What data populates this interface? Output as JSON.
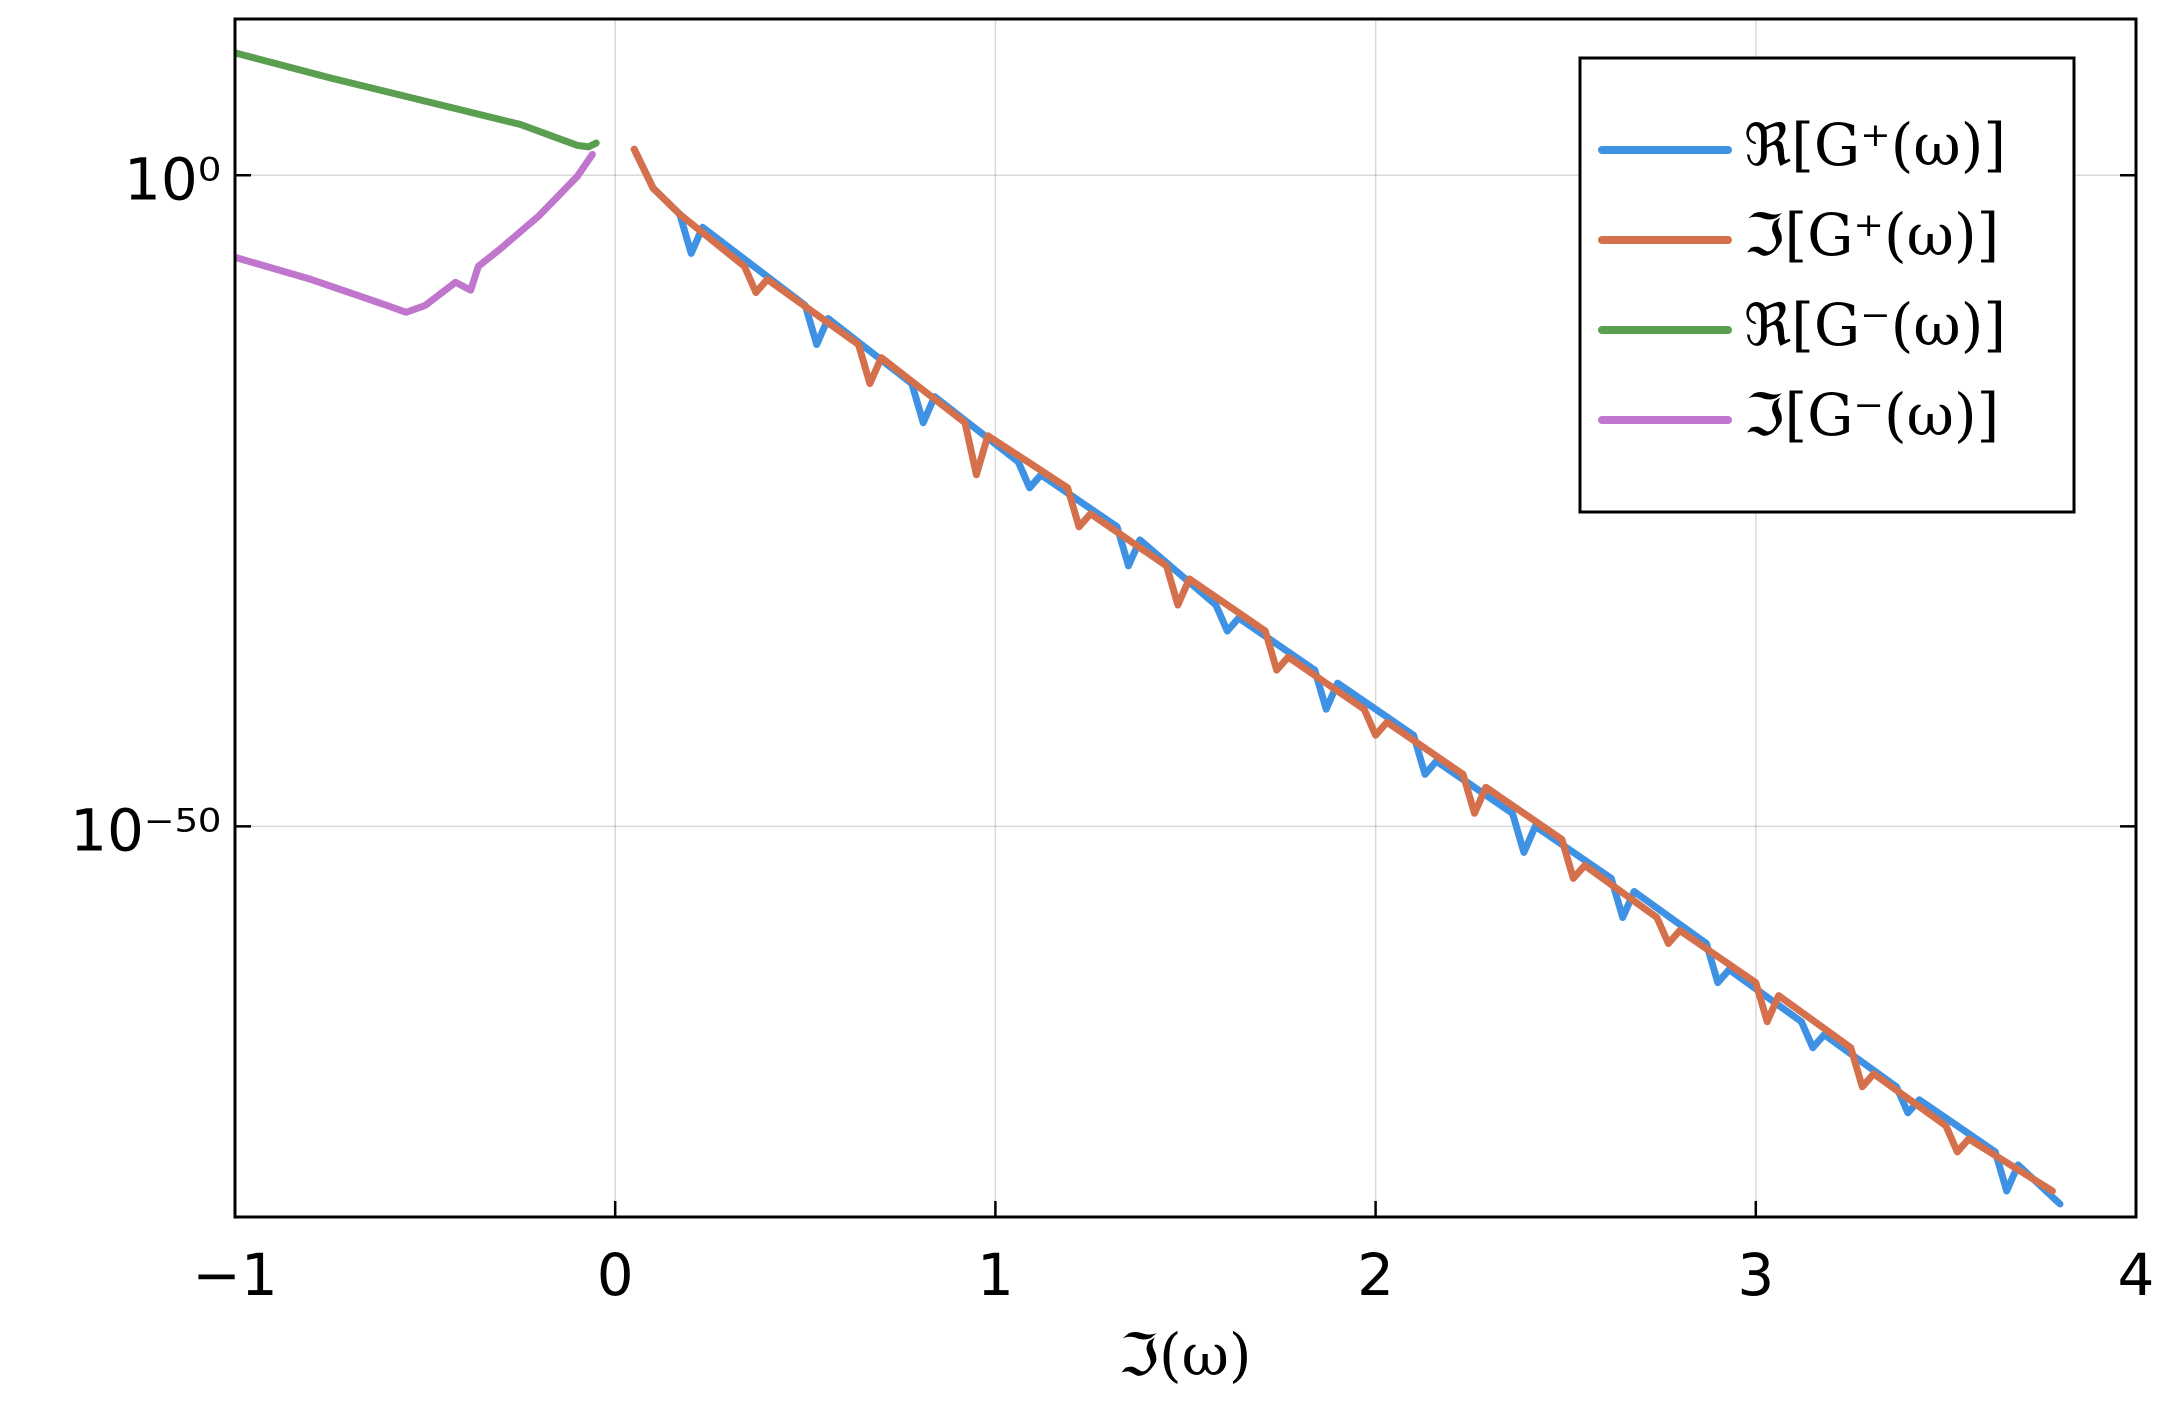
{
  "chart_data": {
    "type": "line",
    "x_label": "ℑ(ω)",
    "xlim": [
      -1,
      4
    ],
    "xticks": [
      {
        "value": -1,
        "label": "−1"
      },
      0,
      1,
      2,
      3,
      4
    ],
    "ylim": [
      1e-80,
      1000000000000.0
    ],
    "y_scale": "log",
    "yticks": [
      {
        "value": 1e-50,
        "label": "10⁻⁵⁰"
      },
      {
        "value": 1,
        "label": "10⁰"
      }
    ],
    "grid": true,
    "legend": "upper right",
    "series": [
      {
        "name": "ℜ[G⁺(ω)]",
        "color": "#3f92e3",
        "x": [
          0.05,
          0.1,
          0.17,
          0.2,
          0.23,
          0.5,
          0.53,
          0.56,
          0.78,
          0.81,
          0.84,
          1.06,
          1.09,
          1.12,
          1.32,
          1.35,
          1.38,
          1.58,
          1.61,
          1.64,
          1.84,
          1.87,
          1.9,
          2.1,
          2.13,
          2.16,
          2.36,
          2.39,
          2.42,
          2.62,
          2.65,
          2.68,
          2.87,
          2.9,
          2.93,
          3.12,
          3.15,
          3.18,
          3.37,
          3.4,
          3.43,
          3.63,
          3.66,
          3.69,
          3.8
        ],
        "values": [
          100.0,
          0.1,
          0.001,
          1e-06,
          0.0001,
          1e-10,
          1e-13,
          1e-11,
          1e-16,
          1e-19,
          1e-17,
          1e-22,
          1e-24,
          1e-23,
          1e-27,
          1e-30,
          1e-28,
          1e-33,
          1e-35,
          1e-34,
          1e-38,
          1e-41,
          1e-39,
          1e-43,
          1e-46,
          1e-45,
          1e-49,
          1e-52,
          1e-50,
          1e-54,
          1e-57,
          1e-55,
          1e-59,
          1e-62,
          1e-61,
          1e-65,
          1e-67,
          1e-66,
          1e-70,
          1e-72,
          1e-71,
          1e-75,
          1e-78,
          1e-76,
          1e-79
        ]
      },
      {
        "name": "ℑ[G⁺(ω)]",
        "color": "#d5704c",
        "x": [
          0.05,
          0.1,
          0.17,
          0.34,
          0.37,
          0.4,
          0.64,
          0.67,
          0.7,
          0.92,
          0.95,
          0.98,
          1.19,
          1.22,
          1.25,
          1.45,
          1.48,
          1.51,
          1.71,
          1.74,
          1.77,
          1.97,
          2.0,
          2.03,
          2.23,
          2.26,
          2.29,
          2.49,
          2.52,
          2.55,
          2.74,
          2.77,
          2.8,
          3.0,
          3.03,
          3.06,
          3.25,
          3.28,
          3.31,
          3.5,
          3.53,
          3.56,
          3.78
        ],
        "values": [
          100.0,
          0.1,
          0.001,
          1e-07,
          1e-09,
          1e-08,
          1e-13,
          1e-16,
          1e-14,
          1e-19,
          1e-23,
          1e-20,
          1e-24,
          1e-27,
          1e-26,
          1e-30,
          1e-33,
          1e-31,
          1e-35,
          1e-38,
          1e-37,
          1e-41,
          1e-43,
          1e-42,
          1e-46,
          1e-49,
          1e-47,
          1e-51,
          1e-54,
          1e-53,
          1e-57,
          1e-59,
          1e-58,
          1e-62,
          1e-65,
          1e-63,
          1e-67,
          1e-70,
          1e-69,
          1e-73,
          1e-75,
          1e-74,
          1e-78
        ]
      },
      {
        "name": "ℜ[G⁻(ω)]",
        "color": "#5a9e50",
        "x": [
          -1,
          -0.75,
          -0.5,
          -0.25,
          -0.1,
          -0.07,
          -0.05
        ],
        "values": [
          2500000000.0,
          30000000.0,
          500000.0,
          8000.0,
          200.0,
          150.0,
          300.0
        ]
      },
      {
        "name": "ℑ[G⁻(ω)]",
        "color": "#bf76cc",
        "x": [
          -1,
          -0.8,
          -0.6,
          -0.55,
          -0.5,
          -0.42,
          -0.38,
          -0.36,
          -0.3,
          -0.2,
          -0.1,
          -0.06
        ],
        "values": [
          5e-07,
          1e-08,
          1e-10,
          3e-11,
          1e-10,
          6e-09,
          1.5e-09,
          1e-07,
          2.5e-06,
          0.0008,
          0.8,
          40
        ]
      }
    ]
  }
}
